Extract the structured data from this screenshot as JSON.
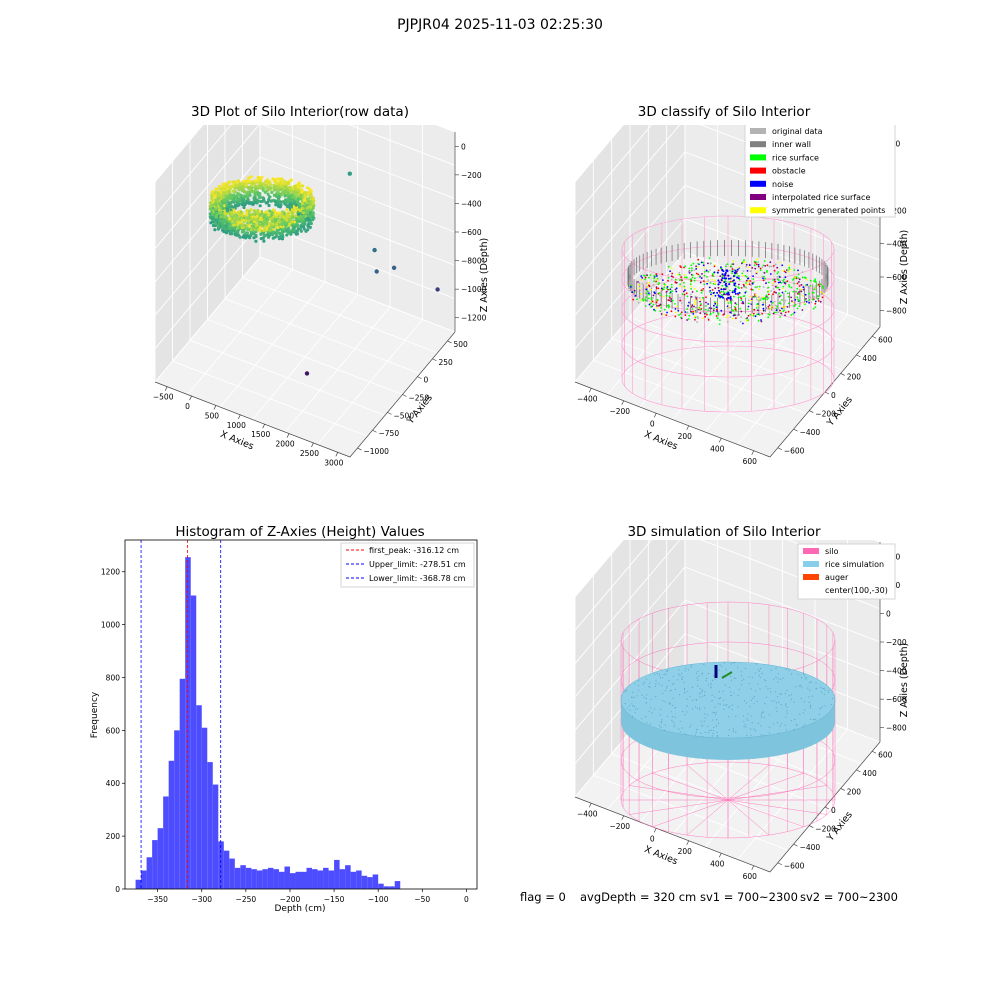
{
  "figure_title": "PJPJR04 2025-11-03 02:25:30",
  "annotation": {
    "flag": "flag = 0",
    "avg_depth": "avgDepth = 320 cm",
    "sv1": "sv1 = 700~2300",
    "sv2": "sv2 = 700~2300"
  },
  "chart_data": [
    {
      "type": "scatter",
      "projection": "3d",
      "title": "3D Plot of Silo Interior(row data)",
      "xlabel": "X Axies",
      "ylabel": "Y Axies",
      "zlabel": "Z Axies (Depth)",
      "x_ticks": [
        "−500",
        "0",
        "500",
        "1000",
        "1500",
        "2000",
        "2500",
        "3000"
      ],
      "y_ticks": [
        "−1000",
        "−750",
        "−500",
        "−250",
        "0",
        "250",
        "500"
      ],
      "z_ticks": [
        "0",
        "−200",
        "−400",
        "−600",
        "−800",
        "−1000",
        "−1200"
      ],
      "xlim": [
        -600,
        3000
      ],
      "ylim": [
        -1000,
        600
      ],
      "zlim": [
        -1300,
        0
      ],
      "outlier_points": [
        {
          "x": 1300,
          "y": 400,
          "z": -400
        },
        {
          "x": 2000,
          "y": 200,
          "z": -700
        },
        {
          "x": 2100,
          "y": 150,
          "z": -800
        },
        {
          "x": 2300,
          "y": 250,
          "z": -800
        },
        {
          "x": 2800,
          "y": 500,
          "z": -1000
        },
        {
          "x": 1600,
          "y": -500,
          "z": -1200
        }
      ],
      "colormap": "viridis"
    },
    {
      "type": "scatter",
      "projection": "3d",
      "title": "3D classify of Silo Interior",
      "xlabel": "X Axies",
      "ylabel": "Y Axies",
      "zlabel": "Z Axies (Depth)",
      "x_ticks": [
        "−400",
        "−200",
        "0",
        "200",
        "400",
        "600"
      ],
      "y_ticks": [
        "−600",
        "−400",
        "−200",
        "0",
        "200",
        "400",
        "600"
      ],
      "z_ticks": [
        "200",
        "0",
        "−200",
        "−400",
        "−600",
        "−800"
      ],
      "xlim": [
        -500,
        700
      ],
      "ylim": [
        -700,
        700
      ],
      "zlim": [
        -900,
        300
      ],
      "legend_position": "upper right",
      "legend": [
        {
          "label": "original data",
          "color": "#b3b3b3"
        },
        {
          "label": "inner wall",
          "color": "#808080"
        },
        {
          "label": "rice surface",
          "color": "#00ff00"
        },
        {
          "label": "obstacle",
          "color": "#ff0000"
        },
        {
          "label": "noise",
          "color": "#0000ff"
        },
        {
          "label": "interpolated rice surface",
          "color": "#800080"
        },
        {
          "label": "symmetric generated points",
          "color": "#ffff00"
        }
      ]
    },
    {
      "type": "bar",
      "title": "Histogram of Z-Axies (Height) Values",
      "xlabel": "Depth (cm)",
      "ylabel": "Frequency",
      "x_ticks": [
        -350,
        -300,
        -250,
        -200,
        -150,
        -100,
        -50,
        0
      ],
      "y_ticks": [
        0,
        200,
        400,
        600,
        800,
        1000,
        1200
      ],
      "xlim": [
        -387,
        12
      ],
      "ylim": [
        0,
        1320
      ],
      "bar_color": "#4d4dff",
      "bin_start": -375,
      "bin_width": 6.25,
      "values": [
        35,
        70,
        120,
        185,
        230,
        350,
        485,
        600,
        795,
        1255,
        1110,
        695,
        610,
        480,
        395,
        180,
        145,
        115,
        80,
        90,
        80,
        75,
        70,
        75,
        80,
        75,
        65,
        85,
        60,
        65,
        65,
        80,
        75,
        70,
        80,
        70,
        110,
        75,
        90,
        65,
        70,
        50,
        45,
        55,
        20,
        10,
        10,
        30
      ],
      "reference_lines": [
        {
          "label": "first_peak: -316.12 cm",
          "x": -316.12,
          "color": "#ff0000"
        },
        {
          "label": "Upper_limit: -278.51 cm",
          "x": -278.51,
          "color": "#0000ff"
        },
        {
          "label": "Lower_limit: -368.78 cm",
          "x": -368.78,
          "color": "#0000ff"
        }
      ],
      "legend_position": "upper right"
    },
    {
      "type": "scatter",
      "projection": "3d",
      "title": "3D simulation of Silo Interior",
      "xlabel": "X Axies",
      "ylabel": "Y Axies",
      "zlabel": "Z Axies (Depth)",
      "x_ticks": [
        "−400",
        "−200",
        "0",
        "200",
        "400",
        "600"
      ],
      "y_ticks": [
        "−600",
        "−400",
        "−200",
        "0",
        "200",
        "400",
        "600"
      ],
      "z_ticks": [
        "400",
        "200",
        "0",
        "−200",
        "−400",
        "−600",
        "−800"
      ],
      "xlim": [
        -500,
        700
      ],
      "ylim": [
        -700,
        700
      ],
      "zlim": [
        -900,
        450
      ],
      "legend_position": "upper right",
      "legend": [
        {
          "label": "silo",
          "color": "#ff69b4"
        },
        {
          "label": "rice simulation",
          "color": "#87ceeb"
        },
        {
          "label": "auger",
          "color": "#ff4500"
        },
        {
          "label": "center(100,-30)",
          "color": ""
        }
      ]
    }
  ]
}
